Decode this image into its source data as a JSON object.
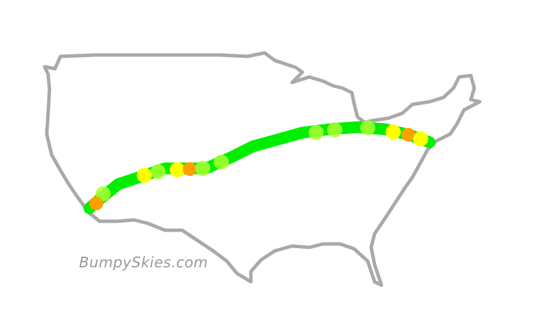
{
  "watermark": "BumpySkies.com",
  "colors": {
    "outline": "#a9a9a9",
    "smooth": "#00ee00",
    "light": "#aaff33",
    "moderate": "#ffff00",
    "heavy": "#ffa000"
  },
  "route_marker_levels": [
    "light",
    "moderate",
    "light",
    "moderate",
    "heavy",
    "light",
    "light",
    "light",
    "light",
    "light",
    "moderate",
    "heavy",
    "moderate",
    "heavy"
  ]
}
